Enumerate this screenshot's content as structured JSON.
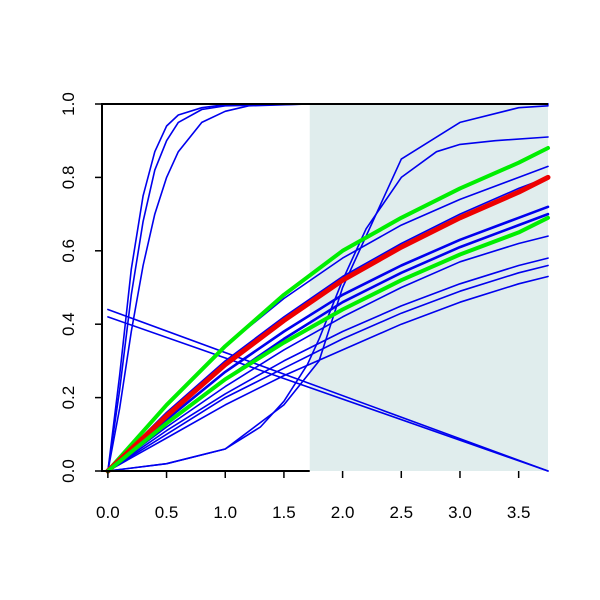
{
  "chart_data": {
    "type": "line",
    "xlim": [
      -0.05,
      3.75
    ],
    "ylim": [
      0,
      1
    ],
    "x_ticks": [
      0,
      0.5,
      1,
      1.5,
      2,
      2.5,
      3,
      3.5
    ],
    "x_tick_labels": [
      "0.0",
      "0.5",
      "1.0",
      "1.5",
      "2.0",
      "2.5",
      "3.0",
      "3.5"
    ],
    "y_ticks": [
      0,
      0.2,
      0.4,
      0.6,
      0.8,
      1
    ],
    "y_tick_labels": [
      "0.0",
      "0.2",
      "0.4",
      "0.6",
      "0.8",
      "1.0"
    ],
    "grid": false,
    "legend": false,
    "shaded_region": {
      "x": [
        1.72,
        3.75
      ],
      "color": "#e0eded"
    },
    "colors": {
      "series": "#0000ee",
      "highlight": "#ee0000",
      "bounds": "#00ee00",
      "axis": "#000000"
    },
    "series": [
      {
        "id": "fast-1",
        "color": "#0000ee",
        "width": 1.6,
        "x": [
          0,
          0.1,
          0.2,
          0.3,
          0.4,
          0.5,
          0.6,
          0.8,
          1.0,
          1.72,
          3.75
        ],
        "y": [
          0,
          0.22,
          0.48,
          0.68,
          0.82,
          0.9,
          0.95,
          0.985,
          0.995,
          1.0,
          1.0
        ]
      },
      {
        "id": "fast-2",
        "color": "#0000ee",
        "width": 1.6,
        "x": [
          0,
          0.1,
          0.2,
          0.3,
          0.4,
          0.5,
          0.6,
          0.8,
          1.0,
          1.72,
          3.75
        ],
        "y": [
          0,
          0.26,
          0.55,
          0.75,
          0.87,
          0.94,
          0.97,
          0.99,
          0.998,
          1.0,
          1.0
        ]
      },
      {
        "id": "fast-3",
        "color": "#0000ee",
        "width": 1.6,
        "x": [
          0,
          0.1,
          0.2,
          0.3,
          0.4,
          0.5,
          0.6,
          0.8,
          1.0,
          1.2,
          1.72,
          3.75
        ],
        "y": [
          0,
          0.17,
          0.38,
          0.56,
          0.7,
          0.8,
          0.87,
          0.95,
          0.98,
          0.995,
          1.0,
          1.0
        ]
      },
      {
        "id": "sigmoid",
        "color": "#0000ee",
        "width": 1.6,
        "x": [
          0,
          0.5,
          1.0,
          1.3,
          1.5,
          1.7,
          1.8,
          2.0,
          2.2,
          2.5,
          2.8,
          3.0,
          3.3,
          3.75
        ],
        "y": [
          0,
          0.02,
          0.06,
          0.12,
          0.19,
          0.29,
          0.36,
          0.52,
          0.66,
          0.8,
          0.87,
          0.89,
          0.9,
          0.91
        ]
      },
      {
        "id": "slow-s",
        "color": "#0000ee",
        "width": 1.6,
        "x": [
          0,
          0.5,
          1.0,
          1.5,
          1.8,
          2.0,
          2.5,
          3.0,
          3.5,
          3.75
        ],
        "y": [
          0,
          0.02,
          0.06,
          0.18,
          0.3,
          0.5,
          0.85,
          0.95,
          0.99,
          0.995
        ]
      },
      {
        "id": "decay-1",
        "color": "#0000ee",
        "width": 1.6,
        "x": [
          0,
          3.75
        ],
        "y": [
          0.44,
          0.0
        ]
      },
      {
        "id": "decay-2",
        "color": "#0000ee",
        "width": 1.6,
        "x": [
          0,
          3.75
        ],
        "y": [
          0.42,
          0.0
        ]
      },
      {
        "id": "blue-a",
        "color": "#0000ee",
        "width": 1.6,
        "x": [
          0,
          0.5,
          1.0,
          1.5,
          2.0,
          2.5,
          3.0,
          3.5,
          3.75
        ],
        "y": [
          0,
          0.18,
          0.34,
          0.47,
          0.58,
          0.67,
          0.74,
          0.8,
          0.83
        ]
      },
      {
        "id": "blue-b",
        "color": "#0000ee",
        "width": 1.6,
        "x": [
          0,
          0.5,
          1.0,
          1.5,
          2.0,
          2.5,
          3.0,
          3.5,
          3.75
        ],
        "y": [
          0,
          0.16,
          0.3,
          0.42,
          0.53,
          0.62,
          0.7,
          0.77,
          0.8
        ]
      },
      {
        "id": "blue-c",
        "color": "#0000ee",
        "width": 2.6,
        "x": [
          0,
          0.5,
          1.0,
          1.5,
          2.0,
          2.5,
          3.0,
          3.5,
          3.75
        ],
        "y": [
          0,
          0.14,
          0.27,
          0.38,
          0.48,
          0.56,
          0.63,
          0.69,
          0.72
        ]
      },
      {
        "id": "blue-d",
        "color": "#0000ee",
        "width": 2.6,
        "x": [
          0,
          0.5,
          1.0,
          1.5,
          2.0,
          2.5,
          3.0,
          3.5,
          3.75
        ],
        "y": [
          0,
          0.13,
          0.25,
          0.36,
          0.46,
          0.54,
          0.61,
          0.67,
          0.7
        ]
      },
      {
        "id": "blue-e",
        "color": "#0000ee",
        "width": 1.6,
        "x": [
          0,
          0.5,
          1.0,
          1.5,
          2.0,
          2.5,
          3.0,
          3.5,
          3.75
        ],
        "y": [
          0,
          0.11,
          0.21,
          0.3,
          0.38,
          0.45,
          0.51,
          0.56,
          0.58
        ]
      },
      {
        "id": "blue-f",
        "color": "#0000ee",
        "width": 1.6,
        "x": [
          0,
          0.5,
          1.0,
          1.5,
          2.0,
          2.5,
          3.0,
          3.5,
          3.75
        ],
        "y": [
          0,
          0.1,
          0.2,
          0.28,
          0.36,
          0.43,
          0.49,
          0.54,
          0.56
        ]
      },
      {
        "id": "blue-g",
        "color": "#0000ee",
        "width": 1.6,
        "x": [
          0,
          0.5,
          1.0,
          1.5,
          2.0,
          2.5,
          3.0,
          3.5,
          3.75
        ],
        "y": [
          0,
          0.09,
          0.18,
          0.26,
          0.33,
          0.4,
          0.46,
          0.51,
          0.53
        ]
      },
      {
        "id": "blue-h",
        "color": "#0000ee",
        "width": 1.6,
        "x": [
          0,
          0.5,
          1.0,
          1.5,
          2.0,
          2.5,
          3.0,
          3.5,
          3.75
        ],
        "y": [
          0,
          0.12,
          0.23,
          0.33,
          0.42,
          0.5,
          0.57,
          0.62,
          0.64
        ]
      },
      {
        "id": "green-upper",
        "color": "#00ee00",
        "width": 4,
        "x": [
          0,
          0.5,
          1.0,
          1.5,
          2.0,
          2.5,
          3.0,
          3.5,
          3.75
        ],
        "y": [
          0,
          0.18,
          0.34,
          0.48,
          0.6,
          0.69,
          0.77,
          0.84,
          0.88
        ]
      },
      {
        "id": "red-mean",
        "color": "#ee0000",
        "width": 5,
        "x": [
          0,
          0.5,
          1.0,
          1.5,
          2.0,
          2.5,
          3.0,
          3.5,
          3.75
        ],
        "y": [
          0,
          0.15,
          0.29,
          0.41,
          0.52,
          0.61,
          0.69,
          0.76,
          0.8
        ]
      },
      {
        "id": "green-lower",
        "color": "#00ee00",
        "width": 4,
        "x": [
          0,
          0.5,
          1.0,
          1.5,
          2.0,
          2.5,
          3.0,
          3.5,
          3.75
        ],
        "y": [
          0,
          0.13,
          0.25,
          0.35,
          0.44,
          0.52,
          0.59,
          0.65,
          0.69
        ]
      }
    ]
  }
}
